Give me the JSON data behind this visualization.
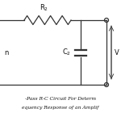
{
  "R2_label": "R$_2$",
  "C2_label": "C$_2$",
  "Vo_label": "V",
  "bg_color": "#ffffff",
  "line_color": "#333333",
  "text_color": "#111111",
  "label_fontsize": 6.0,
  "small_fontsize": 4.8,
  "title_fontsize": 4.3,
  "linewidth": 0.9,
  "fig_width": 1.5,
  "fig_height": 1.5,
  "dpi": 100,
  "title_line1": "-Pass R-C Circuit For Determ",
  "title_line2": "equency Response of an Amplif"
}
